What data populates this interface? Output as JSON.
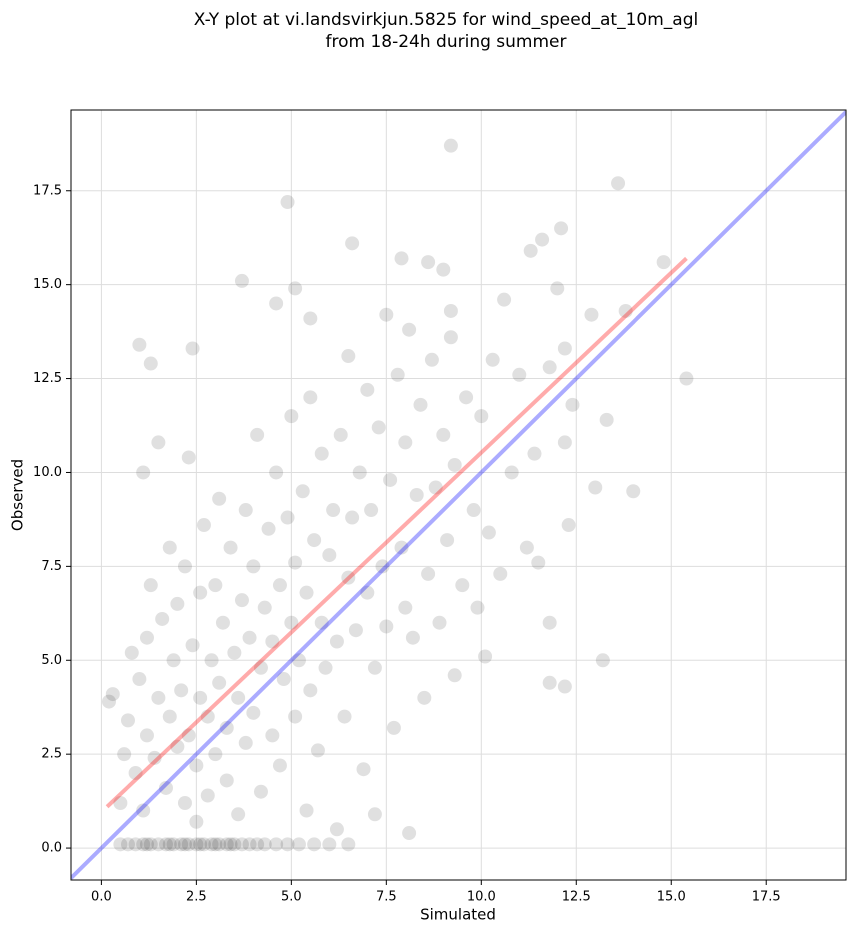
{
  "chart_data": {
    "type": "scatter",
    "title": [
      "X-Y plot at vi.landsvirkjun.5825 for wind_speed_at_10m_agl",
      "from 18-24h during summer"
    ],
    "xlabel": "Simulated",
    "ylabel": "Observed",
    "xlim": [
      -0.8,
      19.6
    ],
    "ylim": [
      -0.85,
      19.65
    ],
    "xticks": [
      {
        "value": 0,
        "label": "0.0"
      },
      {
        "value": 2.5,
        "label": "2.5"
      },
      {
        "value": 5,
        "label": "5.0"
      },
      {
        "value": 7.5,
        "label": "7.5"
      },
      {
        "value": 10,
        "label": "10.0"
      },
      {
        "value": 12.5,
        "label": "12.5"
      },
      {
        "value": 15,
        "label": "15.0"
      },
      {
        "value": 17.5,
        "label": "17.5"
      }
    ],
    "yticks": [
      {
        "value": 0,
        "label": "0.0"
      },
      {
        "value": 2.5,
        "label": "2.5"
      },
      {
        "value": 5,
        "label": "5.0"
      },
      {
        "value": 7.5,
        "label": "7.5"
      },
      {
        "value": 10,
        "label": "10.0"
      },
      {
        "value": 12.5,
        "label": "12.5"
      },
      {
        "value": 15,
        "label": "15.0"
      },
      {
        "value": 17.5,
        "label": "17.5"
      }
    ],
    "grid": true,
    "color": "#000000",
    "x": [
      0.5,
      0.7,
      0.9,
      1.1,
      1.2,
      1.3,
      1.5,
      1.7,
      1.8,
      1.9,
      2.1,
      2.2,
      2.3,
      2.5,
      2.6,
      2.7,
      2.9,
      3.0,
      3.1,
      3.3,
      3.4,
      3.5,
      3.7,
      3.9,
      4.1,
      4.3,
      4.6,
      4.9,
      5.2,
      5.6,
      6.0,
      6.5,
      0.5,
      0.6,
      0.7,
      0.8,
      0.9,
      1.0,
      1.1,
      1.2,
      1.2,
      1.3,
      1.4,
      1.5,
      1.6,
      1.7,
      1.8,
      1.8,
      1.9,
      2.0,
      2.0,
      2.1,
      2.2,
      2.2,
      2.3,
      2.3,
      2.4,
      2.5,
      2.5,
      2.6,
      2.6,
      2.7,
      2.8,
      2.8,
      2.9,
      3.0,
      3.0,
      3.1,
      3.1,
      3.2,
      3.3,
      3.3,
      3.4,
      3.5,
      3.6,
      3.6,
      3.7,
      3.8,
      3.8,
      3.9,
      4.0,
      4.0,
      4.1,
      4.2,
      4.2,
      4.3,
      4.4,
      4.5,
      4.5,
      4.6,
      4.7,
      4.7,
      4.8,
      4.9,
      5.0,
      5.0,
      5.1,
      5.1,
      5.2,
      5.3,
      5.4,
      5.4,
      5.5,
      5.5,
      5.6,
      5.7,
      5.8,
      5.8,
      5.9,
      6.0,
      6.1,
      6.2,
      6.2,
      6.3,
      6.4,
      6.5,
      6.5,
      6.6,
      6.7,
      6.8,
      6.9,
      7.0,
      7.0,
      7.1,
      7.2,
      7.3,
      7.4,
      7.5,
      7.5,
      7.6,
      7.7,
      7.8,
      7.9,
      8.0,
      8.0,
      8.1,
      8.2,
      8.3,
      8.4,
      8.5,
      8.6,
      8.7,
      8.8,
      8.9,
      9.0,
      9.1,
      9.2,
      9.3,
      9.5,
      9.6,
      9.8,
      9.9,
      10.0,
      10.2,
      10.3,
      10.5,
      10.6,
      10.8,
      11.0,
      11.2,
      11.4,
      11.5,
      11.8,
      12.0,
      12.2,
      4.9,
      9.2,
      13.6,
      3.7,
      6.6,
      1.0,
      1.3,
      2.4,
      4.6,
      5.5,
      5.1,
      14.8,
      15.4,
      14.0,
      13.2,
      12.2,
      11.8,
      11.8,
      13.0,
      12.3,
      10.1,
      9.3,
      8.1,
      7.2,
      0.2,
      0.3,
      1.5,
      1.1,
      12.1,
      11.6,
      11.3,
      12.9,
      13.8,
      13.3,
      12.4,
      12.2,
      7.9,
      8.6,
      9.0,
      9.2
    ],
    "y": [
      0.1,
      0.1,
      0.1,
      0.1,
      0.1,
      0.1,
      0.1,
      0.1,
      0.1,
      0.1,
      0.1,
      0.1,
      0.1,
      0.1,
      0.1,
      0.1,
      0.1,
      0.1,
      0.1,
      0.1,
      0.1,
      0.1,
      0.1,
      0.1,
      0.1,
      0.1,
      0.1,
      0.1,
      0.1,
      0.1,
      0.1,
      0.1,
      1.2,
      2.5,
      3.4,
      5.2,
      2.0,
      4.5,
      1.0,
      3.0,
      5.6,
      7.0,
      2.4,
      4.0,
      6.1,
      1.6,
      3.5,
      8.0,
      5.0,
      2.7,
      6.5,
      4.2,
      1.2,
      7.5,
      3.0,
      10.4,
      5.4,
      0.7,
      2.2,
      4.0,
      6.8,
      8.6,
      3.5,
      1.4,
      5.0,
      7.0,
      2.5,
      9.3,
      4.4,
      6.0,
      1.8,
      3.2,
      8.0,
      5.2,
      0.9,
      4.0,
      6.6,
      9.0,
      2.8,
      5.6,
      7.5,
      3.6,
      11.0,
      4.8,
      1.5,
      6.4,
      8.5,
      3.0,
      5.5,
      10.0,
      7.0,
      2.2,
      4.5,
      8.8,
      6.0,
      11.5,
      3.5,
      7.6,
      5.0,
      9.5,
      1.0,
      6.8,
      4.2,
      12.0,
      8.2,
      2.6,
      6.0,
      10.5,
      4.8,
      7.8,
      9.0,
      0.5,
      5.5,
      11.0,
      3.5,
      7.2,
      13.1,
      8.8,
      5.8,
      10.0,
      2.1,
      6.8,
      12.2,
      9.0,
      4.8,
      11.2,
      7.5,
      14.2,
      5.9,
      9.8,
      3.2,
      12.6,
      8.0,
      6.4,
      10.8,
      13.8,
      5.6,
      9.4,
      11.8,
      4.0,
      7.3,
      13.0,
      9.6,
      6.0,
      11.0,
      8.2,
      13.6,
      10.2,
      7.0,
      12.0,
      9.0,
      6.4,
      11.5,
      8.4,
      13.0,
      7.3,
      14.6,
      10.0,
      12.6,
      8.0,
      10.5,
      7.6,
      12.8,
      14.9,
      13.3,
      17.2,
      18.7,
      17.7,
      15.1,
      16.1,
      13.4,
      12.9,
      13.3,
      14.5,
      14.1,
      14.9,
      15.6,
      12.5,
      9.5,
      5.0,
      4.3,
      4.4,
      6.0,
      9.6,
      8.6,
      5.1,
      4.6,
      0.4,
      0.9,
      3.9,
      4.1,
      10.8,
      10.0,
      16.5,
      16.2,
      15.9,
      14.2,
      14.3,
      11.4,
      11.8,
      10.8,
      15.7,
      15.6,
      15.4,
      14.3
    ],
    "lines": [
      {
        "color": "#0000ff",
        "x": [
          -0.8,
          19.6
        ],
        "y": [
          -0.8,
          19.6
        ]
      },
      {
        "color": "#ff0000",
        "x": [
          0.15,
          15.4
        ],
        "y": [
          1.1,
          15.7
        ]
      }
    ]
  }
}
